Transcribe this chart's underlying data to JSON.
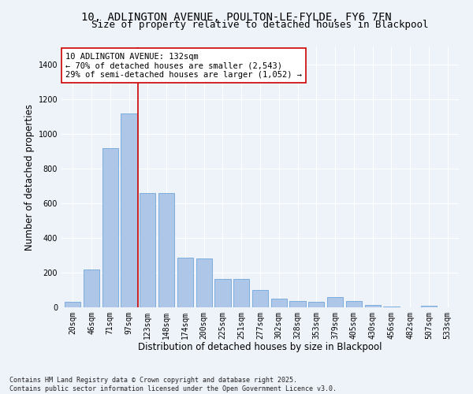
{
  "title_line1": "10, ADLINGTON AVENUE, POULTON-LE-FYLDE, FY6 7FN",
  "title_line2": "Size of property relative to detached houses in Blackpool",
  "xlabel": "Distribution of detached houses by size in Blackpool",
  "ylabel": "Number of detached properties",
  "categories": [
    "20sqm",
    "46sqm",
    "71sqm",
    "97sqm",
    "123sqm",
    "148sqm",
    "174sqm",
    "200sqm",
    "225sqm",
    "251sqm",
    "277sqm",
    "302sqm",
    "328sqm",
    "353sqm",
    "379sqm",
    "405sqm",
    "430sqm",
    "456sqm",
    "482sqm",
    "507sqm",
    "533sqm"
  ],
  "values": [
    30,
    220,
    920,
    1120,
    660,
    660,
    285,
    280,
    165,
    165,
    100,
    50,
    35,
    30,
    60,
    35,
    15,
    5,
    0,
    10,
    0
  ],
  "bar_color": "#aec6e8",
  "bar_edge_color": "#5b9bd5",
  "vline_color": "#cc0000",
  "vline_x_index": 3.5,
  "annotation_text": "10 ADLINGTON AVENUE: 132sqm\n← 70% of detached houses are smaller (2,543)\n29% of semi-detached houses are larger (1,052) →",
  "annotation_box_facecolor": "#ffffff",
  "annotation_box_edgecolor": "#cc0000",
  "ylim": [
    0,
    1500
  ],
  "yticks": [
    0,
    200,
    400,
    600,
    800,
    1000,
    1200,
    1400
  ],
  "bg_color": "#eef2f9",
  "footer_text": "Contains HM Land Registry data © Crown copyright and database right 2025.\nContains public sector information licensed under the Open Government Licence v3.0.",
  "title_fontsize": 10,
  "subtitle_fontsize": 9,
  "axis_label_fontsize": 8.5,
  "tick_fontsize": 7,
  "annotation_fontsize": 7.5,
  "footer_fontsize": 6
}
